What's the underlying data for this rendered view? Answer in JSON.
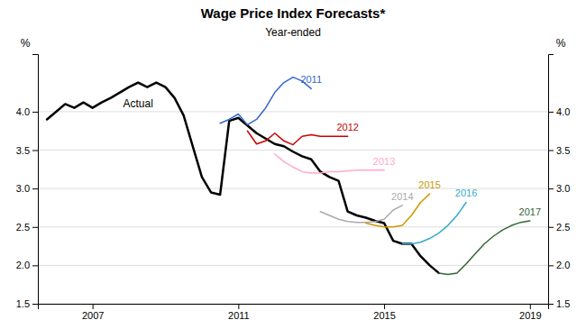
{
  "chart_data": {
    "type": "line",
    "title": "Wage Price Index Forecasts*",
    "subtitle": "Year-ended",
    "ylabel": "%",
    "y2label": "%",
    "xlim": [
      2005.5,
      2019.5
    ],
    "xticks": [
      2007,
      2011,
      2015,
      2019
    ],
    "ylim": [
      1.5,
      4.75
    ],
    "yticks": [
      1.5,
      {
        "value": 2.0,
        "label": "2.0"
      },
      2.5,
      {
        "value": 3.0,
        "label": "3.0"
      },
      3.5,
      {
        "value": 4.0,
        "label": "4.0"
      }
    ],
    "y2lim": [
      1.5,
      4.75
    ],
    "y2ticks": [
      1.5,
      {
        "value": 2.0,
        "label": "2.0"
      },
      2.5,
      {
        "value": 3.0,
        "label": "3.0"
      },
      3.5,
      {
        "value": 4.0,
        "label": "4.0"
      }
    ],
    "grid": true,
    "series": [
      {
        "name": "Actual",
        "color": "#000000",
        "x": [
          2005.75,
          2006.0,
          2006.25,
          2006.5,
          2006.75,
          2007.0,
          2007.25,
          2007.5,
          2007.75,
          2008.0,
          2008.25,
          2008.5,
          2008.75,
          2009.0,
          2009.25,
          2009.5,
          2009.75,
          2010.0,
          2010.25,
          2010.5,
          2010.75,
          2011.0,
          2011.25,
          2011.5,
          2011.75,
          2012.0,
          2012.25,
          2012.5,
          2012.75,
          2013.0,
          2013.25,
          2013.5,
          2013.75,
          2014.0,
          2014.25,
          2014.5,
          2014.75,
          2015.0,
          2015.25,
          2015.5,
          2015.75,
          2016.0,
          2016.25,
          2016.5
        ],
        "values": [
          3.9,
          4.0,
          4.1,
          4.05,
          4.12,
          4.05,
          4.12,
          4.18,
          4.25,
          4.32,
          4.38,
          4.32,
          4.38,
          4.32,
          4.18,
          3.95,
          3.55,
          3.15,
          2.95,
          2.92,
          3.88,
          3.92,
          3.82,
          3.72,
          3.65,
          3.58,
          3.55,
          3.48,
          3.42,
          3.38,
          3.22,
          3.15,
          3.1,
          2.7,
          2.65,
          2.62,
          2.58,
          2.55,
          2.32,
          2.28,
          2.28,
          2.12,
          2.0,
          1.9
        ]
      },
      {
        "name": "2011",
        "color": "#3366cc",
        "x": [
          2010.5,
          2010.75,
          2011.0,
          2011.25,
          2011.5,
          2011.75,
          2012.0,
          2012.25,
          2012.5,
          2012.75,
          2013.0
        ],
        "values": [
          3.85,
          3.9,
          3.97,
          3.83,
          3.9,
          4.05,
          4.25,
          4.38,
          4.45,
          4.4,
          4.3
        ]
      },
      {
        "name": "2012",
        "color": "#cc0000",
        "x": [
          2011.25,
          2011.5,
          2011.75,
          2012.0,
          2012.25,
          2012.5,
          2012.75,
          2013.0,
          2013.25,
          2013.5,
          2013.75,
          2014.0
        ],
        "values": [
          3.75,
          3.58,
          3.62,
          3.72,
          3.62,
          3.57,
          3.68,
          3.7,
          3.68,
          3.68,
          3.68,
          3.68
        ]
      },
      {
        "name": "2013",
        "color": "#ffaacc",
        "x": [
          2012.0,
          2012.25,
          2012.5,
          2012.75,
          2013.0,
          2013.25,
          2013.5,
          2013.75,
          2014.0,
          2014.25,
          2014.5,
          2014.75,
          2015.0
        ],
        "values": [
          3.45,
          3.35,
          3.28,
          3.22,
          3.2,
          3.2,
          3.22,
          3.22,
          3.23,
          3.24,
          3.24,
          3.24,
          3.24
        ]
      },
      {
        "name": "2014",
        "color": "#aaaaaa",
        "x": [
          2013.25,
          2013.5,
          2013.75,
          2014.0,
          2014.25,
          2014.5,
          2014.75,
          2015.0,
          2015.25,
          2015.5
        ],
        "values": [
          2.7,
          2.65,
          2.6,
          2.57,
          2.56,
          2.56,
          2.57,
          2.6,
          2.72,
          2.78
        ]
      },
      {
        "name": "2015",
        "color": "#cc9900",
        "x": [
          2014.5,
          2014.75,
          2015.0,
          2015.25,
          2015.5,
          2015.75,
          2016.0,
          2016.25
        ],
        "values": [
          2.55,
          2.52,
          2.5,
          2.5,
          2.52,
          2.65,
          2.82,
          2.93
        ]
      },
      {
        "name": "2016",
        "color": "#33aacc",
        "x": [
          2015.5,
          2015.75,
          2016.0,
          2016.25,
          2016.5,
          2016.75,
          2017.0,
          2017.25
        ],
        "values": [
          2.28,
          2.28,
          2.3,
          2.35,
          2.42,
          2.52,
          2.65,
          2.82
        ]
      },
      {
        "name": "2017",
        "color": "#336633",
        "x": [
          2016.5,
          2016.75,
          2017.0,
          2017.25,
          2017.5,
          2017.75,
          2018.0,
          2018.25,
          2018.5,
          2018.75,
          2019.0
        ],
        "values": [
          1.9,
          1.88,
          1.9,
          2.02,
          2.15,
          2.28,
          2.38,
          2.46,
          2.52,
          2.56,
          2.58
        ]
      }
    ]
  }
}
